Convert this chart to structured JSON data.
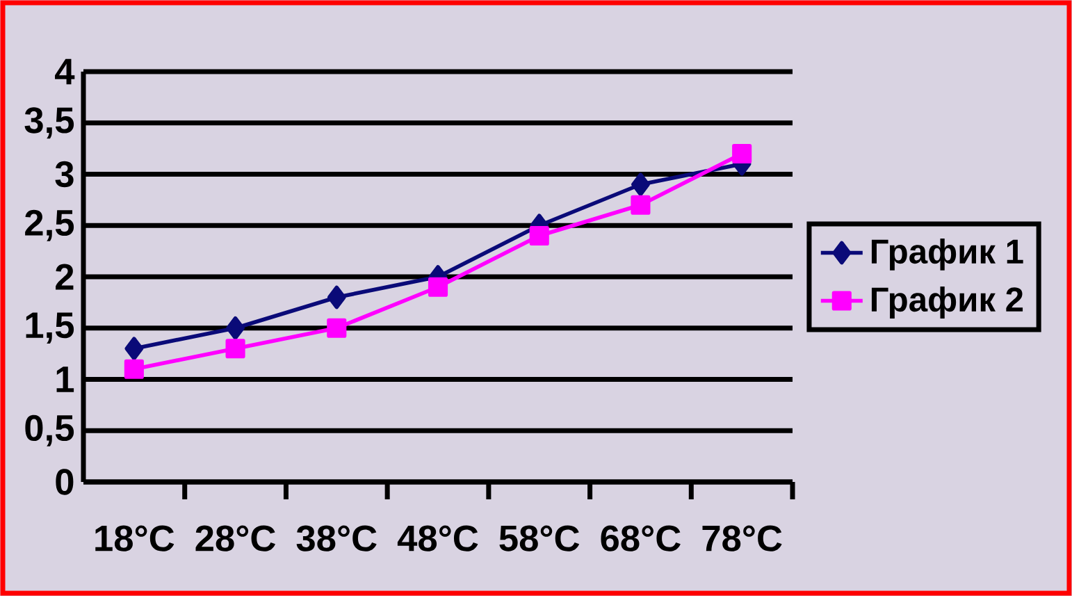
{
  "chart_data": {
    "type": "line",
    "categories": [
      "18°C",
      "28°C",
      "38°C",
      "48°C",
      "58°C",
      "68°C",
      "78°C"
    ],
    "series": [
      {
        "name": "График 1",
        "color": "#0a0a78",
        "marker": "diamond",
        "values": [
          1.3,
          1.5,
          1.8,
          2.0,
          2.5,
          2.9,
          3.1
        ]
      },
      {
        "name": "График 2",
        "color": "#ff00ff",
        "marker": "square",
        "values": [
          1.1,
          1.3,
          1.5,
          1.9,
          2.4,
          2.7,
          3.2
        ]
      }
    ],
    "ylim": [
      0,
      4
    ],
    "yticks": [
      0,
      {
        "value": 0.5,
        "label": "0,5"
      },
      1,
      {
        "value": 1.5,
        "label": "1,5"
      },
      2,
      {
        "value": 2.5,
        "label": "2,5"
      },
      3,
      {
        "value": 3.5,
        "label": "3,5"
      },
      4
    ],
    "grid": "y",
    "legend": "right",
    "line_style": "solid"
  }
}
